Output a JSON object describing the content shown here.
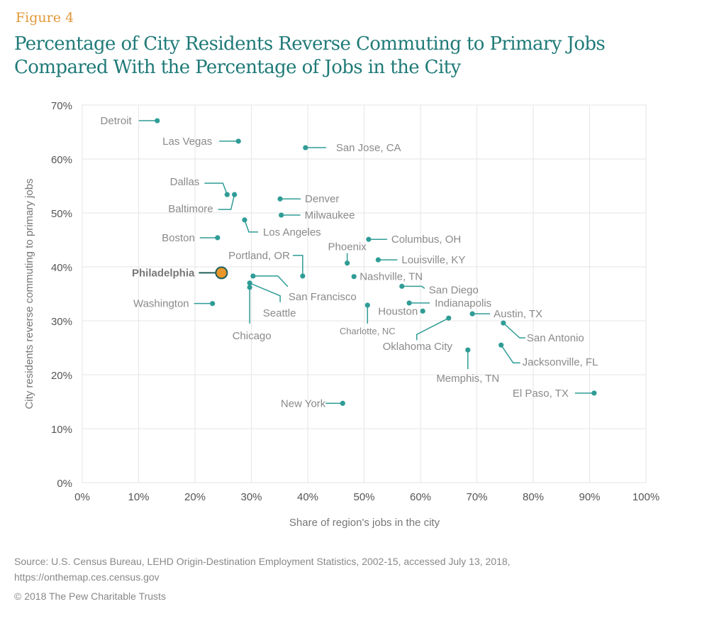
{
  "figure_label": "Figure 4",
  "title_lines": [
    "Percentage of City Residents Reverse Commuting to Primary Jobs",
    "Compared With the Percentage of Jobs in the City"
  ],
  "source_lines": [
    "Source: U.S. Census Bureau, LEHD Origin-Destination Employment Statistics, 2002-15, accessed July 13, 2018,",
    "https://onthemap.ces.census.gov"
  ],
  "copyright": "© 2018 The Pew Charitable Trusts",
  "colors": {
    "point": "#2f9c96",
    "highlight": "#e8962a",
    "highlight_stroke": "#1c5f5c",
    "title": "#1f7a78",
    "figure_label": "#e0993a",
    "grid": "#e6e6e6"
  },
  "chart_data": {
    "type": "scatter",
    "title": "Percentage of City Residents Reverse Commuting to Primary Jobs Compared With the Percentage of Jobs in the City",
    "xlabel": "Share of region's jobs in the city",
    "ylabel": "City residents reverse commuting to primary jobs",
    "xlim": [
      0,
      100
    ],
    "ylim": [
      0,
      70
    ],
    "x_ticks": [
      "0%",
      "10%",
      "20%",
      "30%",
      "40%",
      "50%",
      "60%",
      "70%",
      "80%",
      "90%",
      "100%"
    ],
    "y_ticks": [
      "0%",
      "10%",
      "20%",
      "30%",
      "40%",
      "50%",
      "60%",
      "70%"
    ],
    "grid": true,
    "legend": "none",
    "points": [
      {
        "label": "Detroit",
        "x": 13.3,
        "y": 67.1
      },
      {
        "label": "Las Vegas",
        "x": 27.7,
        "y": 63.3
      },
      {
        "label": "San Jose, CA",
        "x": 39.6,
        "y": 62.1
      },
      {
        "label": "Dallas",
        "x": 25.7,
        "y": 53.4
      },
      {
        "label": "Baltimore",
        "x": 27.0,
        "y": 53.4
      },
      {
        "label": "Denver",
        "x": 35.1,
        "y": 52.6
      },
      {
        "label": "Milwaukee",
        "x": 35.3,
        "y": 49.6
      },
      {
        "label": "Los Angeles",
        "x": 28.8,
        "y": 48.7
      },
      {
        "label": "Boston",
        "x": 24.0,
        "y": 45.4
      },
      {
        "label": "Columbus, OH",
        "x": 50.8,
        "y": 45.1
      },
      {
        "label": "Phoenix",
        "x": 47.0,
        "y": 40.7
      },
      {
        "label": "Louisville, KY",
        "x": 52.5,
        "y": 41.3
      },
      {
        "label": "Philadelphia",
        "x": 24.7,
        "y": 38.9,
        "highlight": true
      },
      {
        "label": "Portland, OR",
        "x": 39.1,
        "y": 38.3
      },
      {
        "label": "San Francisco",
        "x": 30.3,
        "y": 38.3
      },
      {
        "label": "Nashville, TN",
        "x": 48.2,
        "y": 38.2
      },
      {
        "label": "Seattle",
        "x": 29.7,
        "y": 37.0
      },
      {
        "label": "Chicago",
        "x": 29.7,
        "y": 36.2
      },
      {
        "label": "San Diego",
        "x": 56.7,
        "y": 36.4
      },
      {
        "label": "Indianapolis",
        "x": 58.0,
        "y": 33.3
      },
      {
        "label": "Washington",
        "x": 23.1,
        "y": 33.2
      },
      {
        "label": "Charlotte, NC",
        "x": 50.6,
        "y": 32.9
      },
      {
        "label": "Houston",
        "x": 60.4,
        "y": 31.8
      },
      {
        "label": "Austin, TX",
        "x": 69.2,
        "y": 31.3
      },
      {
        "label": "Oklahoma City",
        "x": 65.0,
        "y": 30.5
      },
      {
        "label": "San Antonio",
        "x": 74.7,
        "y": 29.6
      },
      {
        "label": "Jacksonville, FL",
        "x": 74.3,
        "y": 25.5
      },
      {
        "label": "Memphis, TN",
        "x": 68.4,
        "y": 24.6
      },
      {
        "label": "El Paso, TX",
        "x": 90.8,
        "y": 16.6
      },
      {
        "label": "New York",
        "x": 46.2,
        "y": 14.7
      }
    ]
  }
}
